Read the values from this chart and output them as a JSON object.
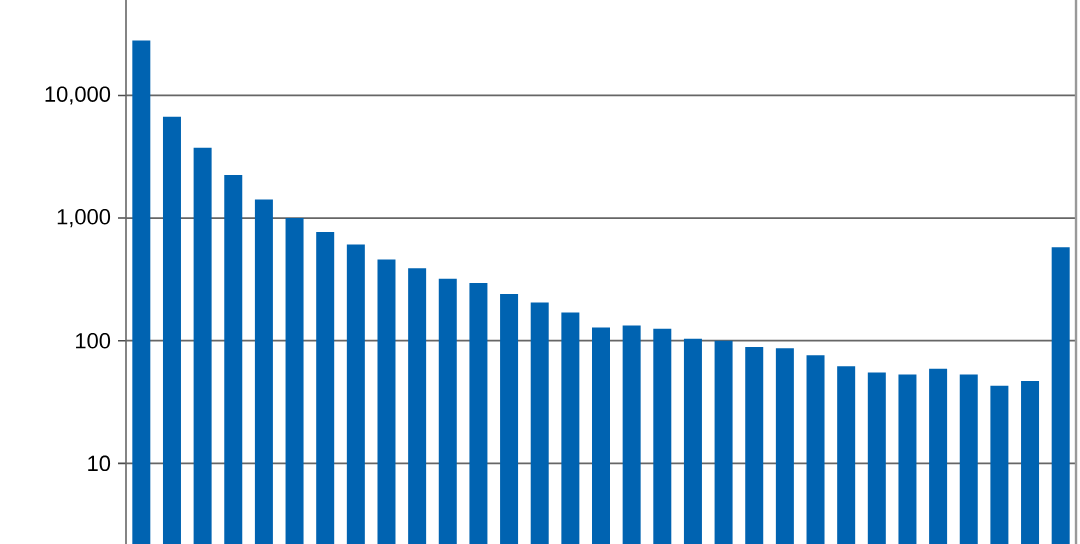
{
  "chart_data": {
    "type": "bar",
    "log": "y",
    "grid": "y",
    "color": "#0063b1",
    "categories": [
      null,
      null,
      null,
      null,
      null,
      null,
      null,
      null,
      null,
      null,
      null,
      null,
      null,
      null,
      null,
      null,
      null,
      null,
      null,
      null,
      null,
      null,
      null,
      null,
      null,
      null,
      null,
      null,
      null,
      null,
      null
    ],
    "values": [
      28000,
      6700,
      3740,
      2240,
      1420,
      1000,
      770,
      610,
      460,
      390,
      320,
      295,
      240,
      205,
      170,
      128,
      133,
      125,
      104,
      100,
      89,
      87,
      76,
      62,
      55,
      53,
      59,
      53,
      43,
      47,
      578
    ],
    "ylim": [
      2.2,
      60000
    ],
    "yticks": [
      {
        "value": 10,
        "label": "10"
      },
      {
        "value": 100,
        "label": "100"
      },
      {
        "value": 1000,
        "label": "1,000"
      },
      {
        "value": 10000,
        "label": "10,000"
      }
    ]
  }
}
